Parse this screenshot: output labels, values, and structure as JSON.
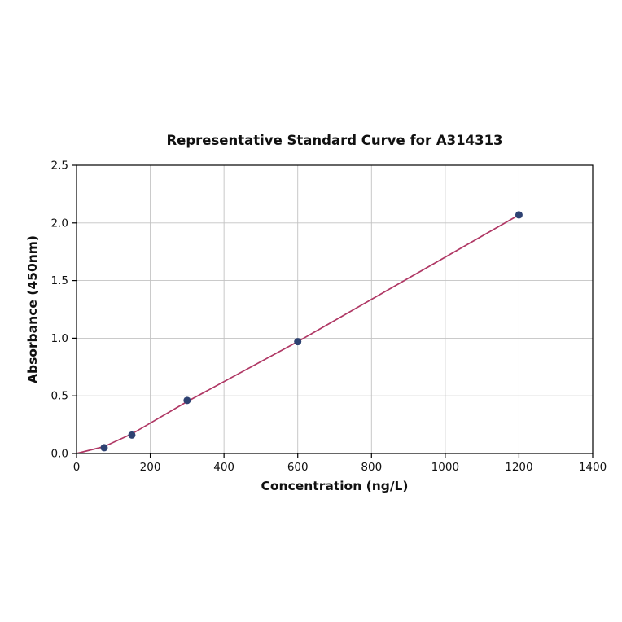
{
  "figure": {
    "title": "Representative Standard Curve for A314313",
    "xlabel": "Concentration (ng/L)",
    "ylabel": "Absorbance (450nm)"
  },
  "chart_data": {
    "type": "scatter",
    "title": "Representative Standard Curve for A314313",
    "xlabel": "Concentration (ng/L)",
    "ylabel": "Absorbance (450nm)",
    "xlim": [
      0,
      1400
    ],
    "ylim": [
      0,
      2.5
    ],
    "x_ticks": [
      0,
      200,
      400,
      600,
      800,
      1000,
      1200,
      1400
    ],
    "x_tick_labels": [
      "0",
      "200",
      "400",
      "600",
      "800",
      "1000",
      "1200",
      "1400"
    ],
    "y_ticks": [
      0.0,
      0.5,
      1.0,
      1.5,
      2.0,
      2.5
    ],
    "y_tick_labels": [
      "0.0",
      "0.5",
      "1.0",
      "1.5",
      "2.0",
      "2.5"
    ],
    "grid": true,
    "legend": "none",
    "points": [
      [
        75,
        0.05
      ],
      [
        150,
        0.16
      ],
      [
        300,
        0.46
      ],
      [
        600,
        0.97
      ],
      [
        1200,
        2.07
      ]
    ],
    "fit_line": [
      [
        0,
        0.0
      ],
      [
        75,
        0.06
      ],
      [
        150,
        0.17
      ],
      [
        300,
        0.45
      ],
      [
        600,
        0.97
      ],
      [
        1200,
        2.07
      ]
    ],
    "colors": {
      "point_color": "#2e4272",
      "line_color": "#b03865",
      "grid_color": "#c2c2c2",
      "axis_color": "#000000",
      "text_color": "#111111"
    }
  }
}
